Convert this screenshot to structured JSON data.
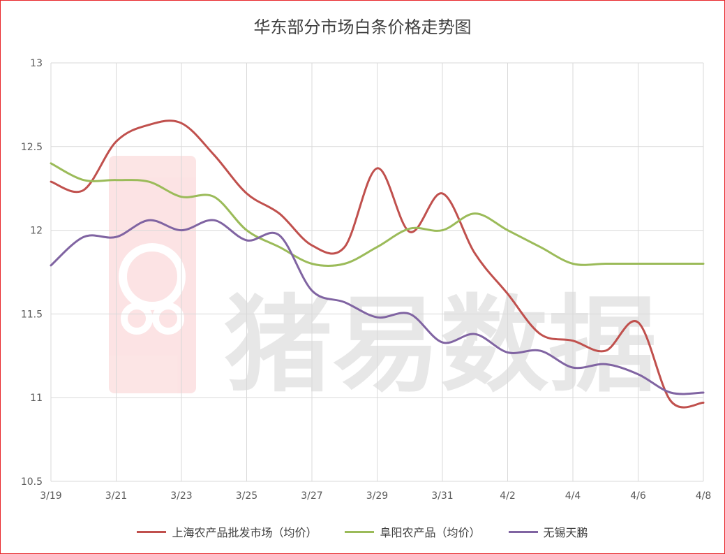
{
  "chart_data": {
    "type": "line",
    "title": "华东部分市场白条价格走势图",
    "xlabel": "",
    "ylabel": "",
    "ylim": [
      10.5,
      13
    ],
    "yticks": [
      "10.5",
      "11",
      "11.5",
      "12",
      "12.5",
      "13"
    ],
    "x": [
      "3/19",
      "3/20",
      "3/21",
      "3/22",
      "3/23",
      "3/24",
      "3/25",
      "3/26",
      "3/27",
      "3/28",
      "3/29",
      "3/30",
      "3/31",
      "4/1",
      "4/2",
      "4/3",
      "4/4",
      "4/5",
      "4/6",
      "4/7",
      "4/8"
    ],
    "xtick_labels": [
      "3/19",
      "3/21",
      "3/23",
      "3/25",
      "3/27",
      "3/29",
      "3/31",
      "4/2",
      "4/4",
      "4/6",
      "4/8"
    ],
    "grid": true,
    "legend_position": "bottom",
    "series": [
      {
        "name": "上海农产品批发市场（均价）",
        "color": "#c0504d",
        "values": [
          12.29,
          12.24,
          12.53,
          12.63,
          12.64,
          12.45,
          12.22,
          12.1,
          11.91,
          11.9,
          12.37,
          11.99,
          12.22,
          11.86,
          11.62,
          11.38,
          11.34,
          11.28,
          11.45,
          10.98,
          10.97
        ]
      },
      {
        "name": "阜阳农产品（均价）",
        "color": "#9bbb59",
        "values": [
          12.4,
          12.3,
          12.3,
          12.29,
          12.2,
          12.2,
          12.0,
          11.9,
          11.8,
          11.8,
          11.9,
          12.01,
          12.0,
          12.1,
          12.0,
          11.9,
          11.8,
          11.8,
          11.8,
          11.8,
          11.8
        ]
      },
      {
        "name": "无锡天鹏",
        "color": "#8064a2",
        "values": [
          11.79,
          11.96,
          11.96,
          12.06,
          12.0,
          12.06,
          11.94,
          11.97,
          11.64,
          11.57,
          11.48,
          11.5,
          11.33,
          11.38,
          11.27,
          11.28,
          11.18,
          11.2,
          11.14,
          11.03,
          11.03
        ]
      }
    ]
  },
  "watermark": {
    "text": "猪易数据"
  }
}
